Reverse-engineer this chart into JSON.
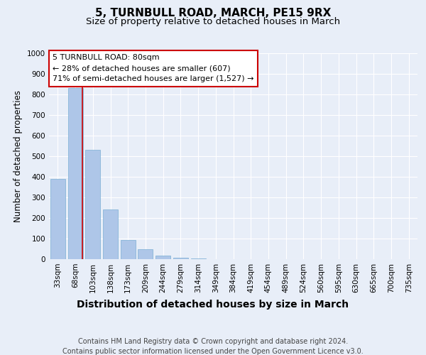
{
  "title1": "5, TURNBULL ROAD, MARCH, PE15 9RX",
  "title2": "Size of property relative to detached houses in March",
  "xlabel": "Distribution of detached houses by size in March",
  "ylabel": "Number of detached properties",
  "categories": [
    "33sqm",
    "68sqm",
    "103sqm",
    "138sqm",
    "173sqm",
    "209sqm",
    "244sqm",
    "279sqm",
    "314sqm",
    "349sqm",
    "384sqm",
    "419sqm",
    "454sqm",
    "489sqm",
    "524sqm",
    "560sqm",
    "595sqm",
    "630sqm",
    "665sqm",
    "700sqm",
    "735sqm"
  ],
  "values": [
    390,
    830,
    530,
    240,
    93,
    50,
    18,
    8,
    3,
    1,
    0,
    0,
    0,
    0,
    0,
    0,
    0,
    0,
    0,
    0,
    0
  ],
  "bar_color": "#aec6e8",
  "bar_edge_color": "#7aafd4",
  "reference_line_color": "#cc0000",
  "annotation_box_text": "5 TURNBULL ROAD: 80sqm\n← 28% of detached houses are smaller (607)\n71% of semi-detached houses are larger (1,527) →",
  "annotation_box_color": "#cc0000",
  "annotation_box_bg": "#ffffff",
  "ylim": [
    0,
    1000
  ],
  "yticks": [
    0,
    100,
    200,
    300,
    400,
    500,
    600,
    700,
    800,
    900,
    1000
  ],
  "footer_text": "Contains HM Land Registry data © Crown copyright and database right 2024.\nContains public sector information licensed under the Open Government Licence v3.0.",
  "background_color": "#e8eef8",
  "plot_bg_color": "#e8eef8",
  "grid_color": "#ffffff",
  "title1_fontsize": 11,
  "title2_fontsize": 9.5,
  "xlabel_fontsize": 10,
  "ylabel_fontsize": 8.5,
  "tick_fontsize": 7.5,
  "footer_fontsize": 7,
  "annotation_fontsize": 8
}
